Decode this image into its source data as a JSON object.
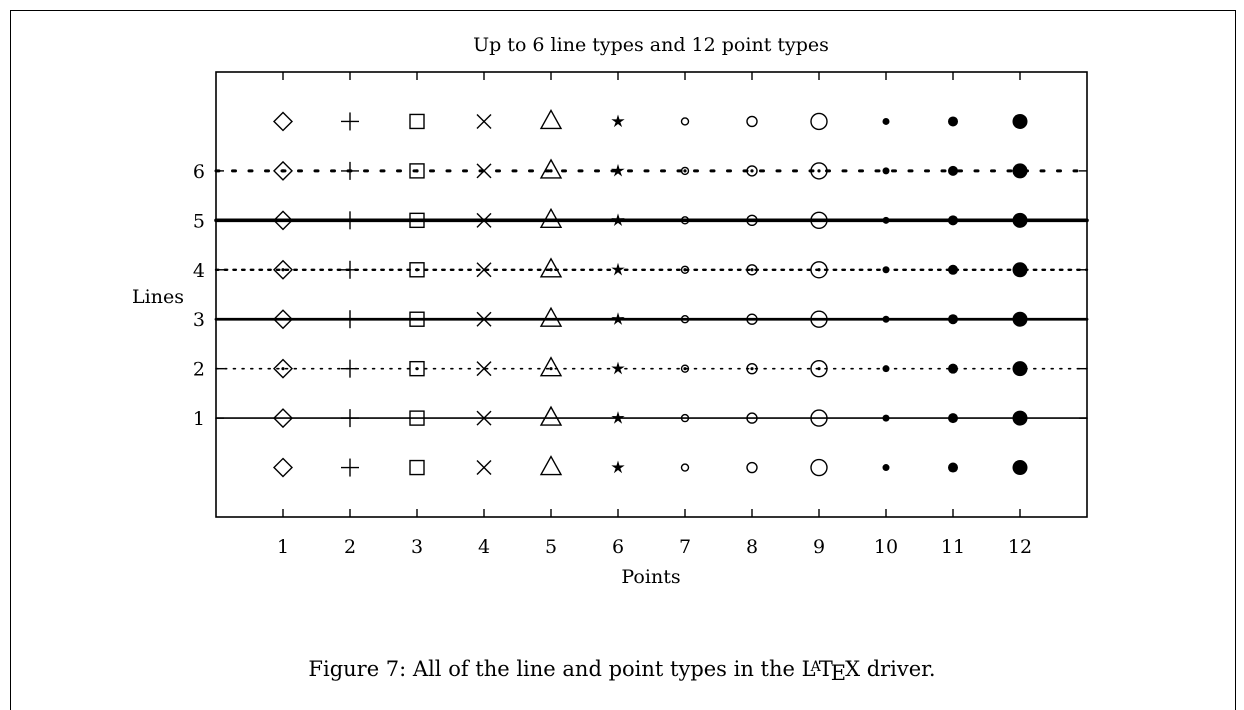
{
  "chart_data": {
    "type": "line",
    "title": "Up to 6 line types and 12 point types",
    "xlabel": "Points",
    "ylabel": "Lines",
    "xlim": [
      0,
      13
    ],
    "ylim": [
      -1,
      8
    ],
    "x_ticks": [
      "1",
      "2",
      "3",
      "4",
      "5",
      "6",
      "7",
      "8",
      "9",
      "10",
      "11",
      "12"
    ],
    "y_ticks": [
      "1",
      "2",
      "3",
      "4",
      "5",
      "6"
    ],
    "point_types": [
      "diamond",
      "plus",
      "square",
      "cross",
      "triangle",
      "star",
      "circle-small",
      "circle",
      "circle-large",
      "dot-small",
      "dot",
      "dot-large"
    ],
    "line_styles": [
      {
        "y": 1,
        "style": "solid-thin"
      },
      {
        "y": 2,
        "style": "dotted-fine"
      },
      {
        "y": 3,
        "style": "solid-thick"
      },
      {
        "y": 4,
        "style": "dotted-medium"
      },
      {
        "y": 5,
        "style": "solid-thicker"
      },
      {
        "y": 6,
        "style": "dotted-sparse"
      }
    ],
    "grid": false,
    "legend": "none"
  },
  "caption": {
    "prefix": "Figure 7: All of the line and point types in the ",
    "latex_L": "L",
    "latex_A": "A",
    "latex_T": "T",
    "latex_E": "E",
    "latex_X": "X",
    "suffix": " driver."
  }
}
